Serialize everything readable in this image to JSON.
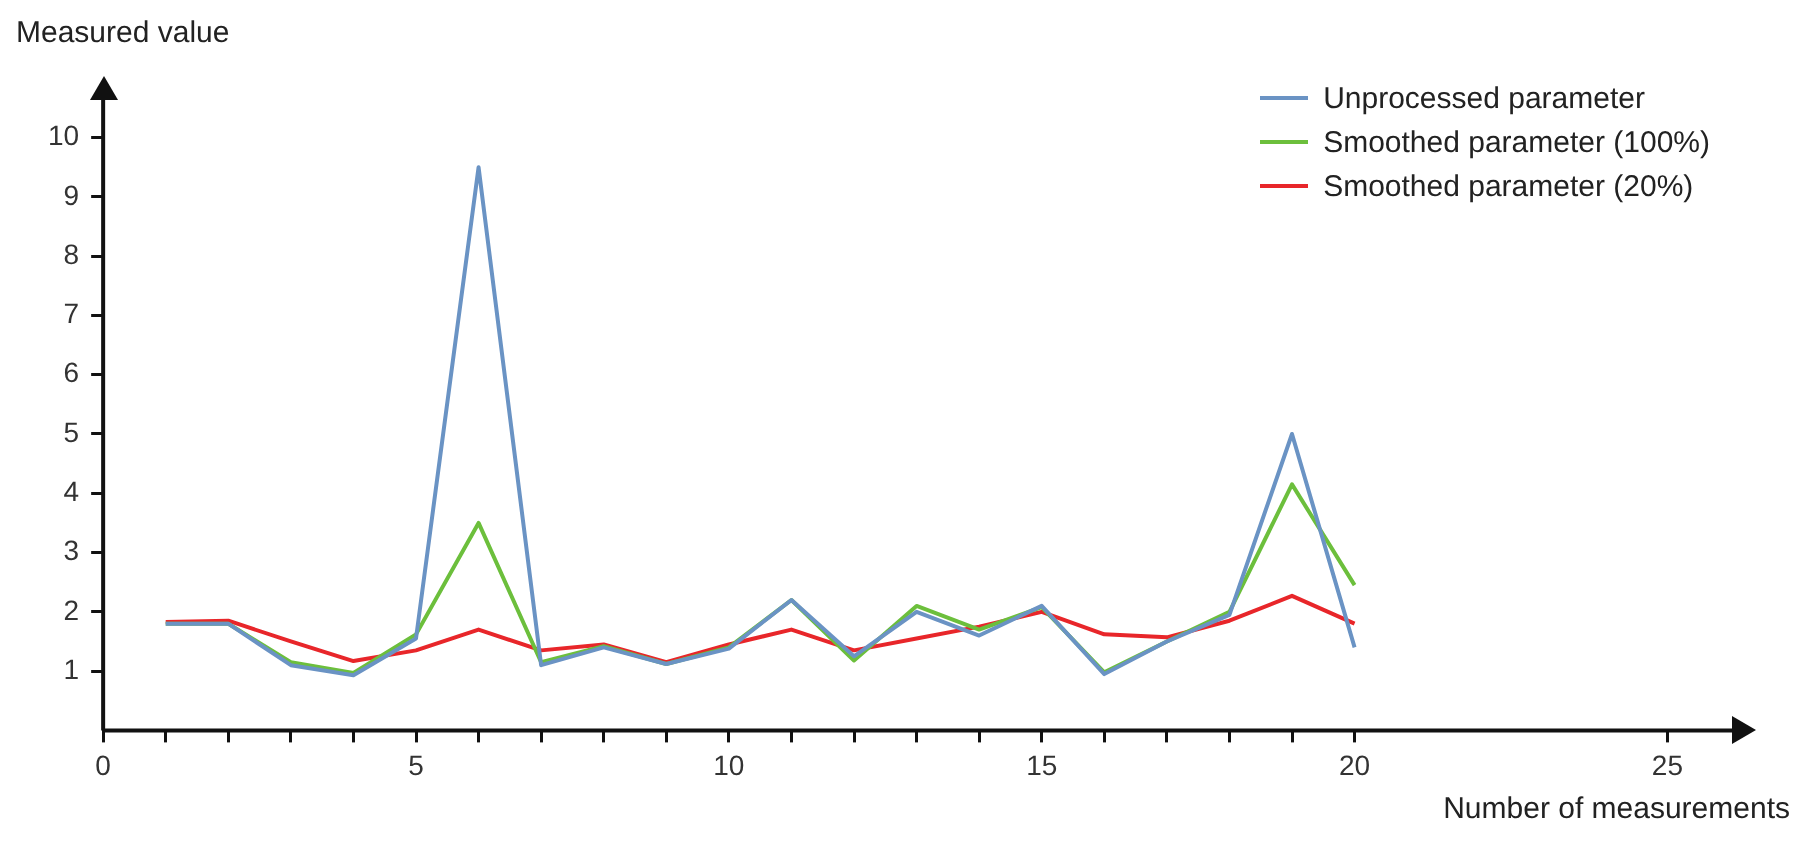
{
  "chart_data": {
    "type": "line",
    "xlabel": "Number of measurements",
    "ylabel": "Measured value",
    "x": [
      1,
      2,
      3,
      4,
      5,
      6,
      7,
      8,
      9,
      10,
      11,
      12,
      13,
      14,
      15,
      16,
      17,
      18,
      19,
      20
    ],
    "series": [
      {
        "name": "Unprocessed parameter",
        "color": "#6a93c4",
        "values": [
          1.8,
          1.8,
          1.1,
          0.93,
          1.55,
          9.5,
          1.1,
          1.4,
          1.12,
          1.38,
          2.2,
          1.25,
          2.0,
          1.6,
          2.1,
          0.95,
          1.5,
          1.95,
          5.0,
          1.4
        ]
      },
      {
        "name": "Smoothed parameter (100%)",
        "color": "#6cbf3c",
        "values": [
          1.8,
          1.8,
          1.15,
          0.97,
          1.62,
          3.5,
          1.15,
          1.42,
          1.12,
          1.4,
          2.2,
          1.18,
          2.1,
          1.7,
          2.08,
          0.98,
          1.5,
          2.0,
          4.15,
          2.45
        ]
      },
      {
        "name": "Smoothed parameter (20%)",
        "color": "#e8262a",
        "values": [
          1.83,
          1.85,
          1.5,
          1.17,
          1.35,
          1.7,
          1.35,
          1.45,
          1.15,
          1.45,
          1.7,
          1.35,
          1.55,
          1.75,
          2.0,
          1.62,
          1.57,
          1.85,
          2.27,
          1.8
        ]
      }
    ],
    "xlim": [
      0,
      26
    ],
    "ylim": [
      0,
      10.6
    ],
    "xticks": [
      0,
      {
        "value": 1,
        "label": null
      },
      {
        "value": 2,
        "label": null
      },
      {
        "value": 3,
        "label": null
      },
      {
        "value": 4,
        "label": null
      },
      5,
      {
        "value": 6,
        "label": null
      },
      {
        "value": 7,
        "label": null
      },
      {
        "value": 8,
        "label": null
      },
      {
        "value": 9,
        "label": null
      },
      10,
      {
        "value": 11,
        "label": null
      },
      {
        "value": 12,
        "label": null
      },
      {
        "value": 13,
        "label": null
      },
      {
        "value": 14,
        "label": null
      },
      15,
      {
        "value": 16,
        "label": null
      },
      {
        "value": 17,
        "label": null
      },
      {
        "value": 18,
        "label": null
      },
      {
        "value": 19,
        "label": null
      },
      20,
      25
    ],
    "yticks": [
      1,
      2,
      3,
      4,
      5,
      6,
      7,
      8,
      9,
      10
    ],
    "grid": false,
    "legend": "top right",
    "marker": "none",
    "line_style": "solid"
  }
}
